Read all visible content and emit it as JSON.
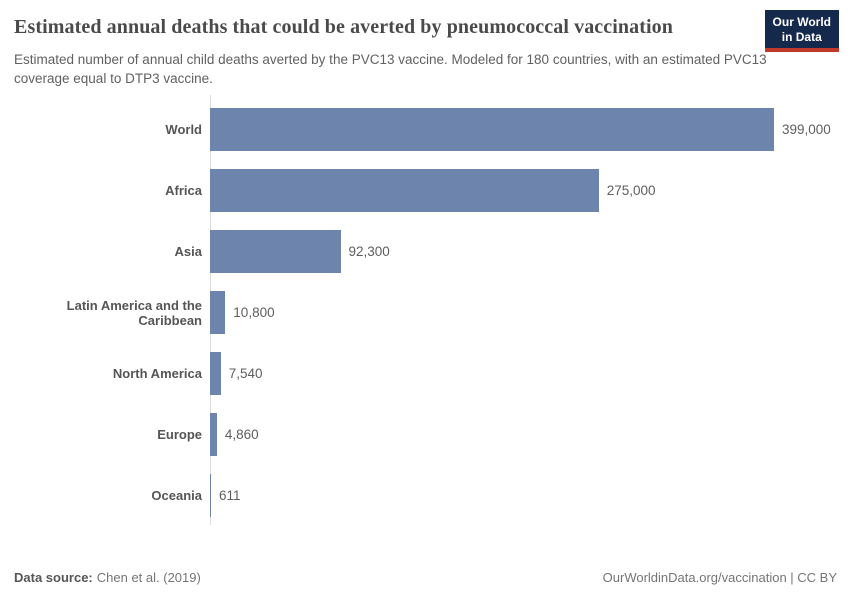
{
  "header": {
    "title": "Estimated annual deaths that could be averted by pneumococcal vaccination",
    "subtitle": "Estimated number of annual child deaths averted by the PVC13 vaccine. Modeled for 180 countries, with an estimated PVC13 coverage equal to DTP3 vaccine.",
    "logo": {
      "line1": "Our World",
      "line2": "in Data",
      "bg_color": "#15294d",
      "accent_color": "#c0392b"
    }
  },
  "chart_data": {
    "type": "bar",
    "orientation": "horizontal",
    "title": "Estimated annual deaths that could be averted by pneumococcal vaccination",
    "categories": [
      "World",
      "Africa",
      "Asia",
      "Latin America and the Caribbean",
      "North America",
      "Europe",
      "Oceania"
    ],
    "values": [
      399000,
      275000,
      92300,
      10800,
      7540,
      4860,
      611
    ],
    "value_labels": [
      "399,000",
      "275,000",
      "92,300",
      "10,800",
      "7,540",
      "4,860",
      "611"
    ],
    "xlim": [
      0,
      399000
    ],
    "grid": false,
    "legend": "none",
    "bar_color": "#6d85ac",
    "axis_line_color": "#dddddd"
  },
  "footer": {
    "source_label": "Data source:",
    "source_value": "Chen et al. (2019)",
    "attribution": "OurWorldinData.org/vaccination | CC BY"
  }
}
